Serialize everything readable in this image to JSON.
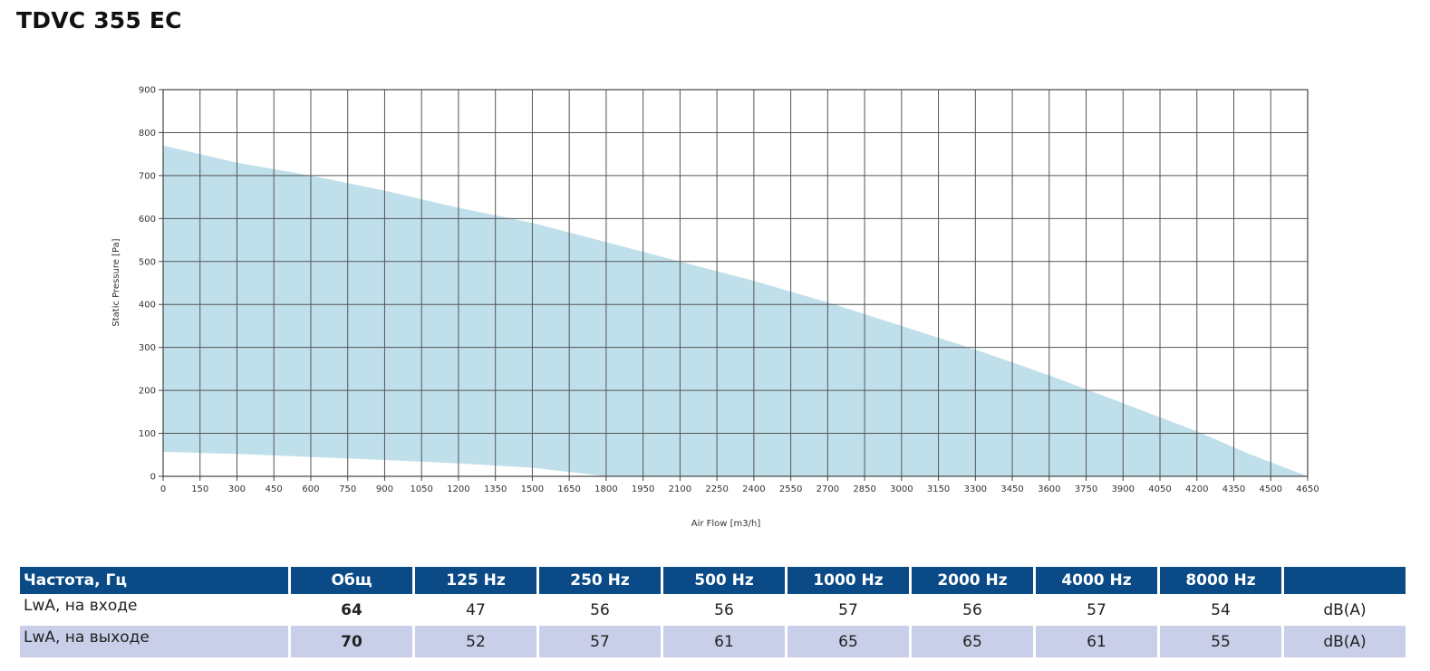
{
  "product": {
    "title": "TDVC 355 EC"
  },
  "chart_data": {
    "type": "area",
    "xlabel": "Air Flow [m3/h]",
    "ylabel": "Static Pressure [Pa]",
    "xlim": [
      0,
      4650
    ],
    "ylim": [
      0,
      900
    ],
    "x_ticks": [
      "0",
      "150",
      "300",
      "450",
      "600",
      "750",
      "900",
      "1050",
      "1200",
      "1350",
      "1500",
      "1650",
      "1800",
      "1950",
      "2100",
      "2250",
      "2400",
      "2550",
      "2700",
      "2850",
      "3000",
      "3150",
      "3300",
      "3450",
      "3600",
      "3750",
      "3900",
      "4050",
      "4200",
      "4350",
      "4500",
      "4650"
    ],
    "y_ticks": [
      "0",
      "100",
      "200",
      "300",
      "400",
      "500",
      "600",
      "700",
      "800",
      "900"
    ],
    "grid": true,
    "fill_color": "#bfe0ea",
    "upper_curve": {
      "x": [
        0,
        300,
        600,
        900,
        1200,
        1500,
        1800,
        2100,
        2400,
        2700,
        3000,
        3300,
        3600,
        3900,
        4200,
        4400,
        4650
      ],
      "y": [
        770,
        730,
        700,
        665,
        625,
        590,
        545,
        500,
        455,
        405,
        350,
        295,
        235,
        170,
        105,
        55,
        0
      ]
    },
    "lower_curve": {
      "x": [
        0,
        300,
        600,
        900,
        1200,
        1500,
        1800,
        4650
      ],
      "y": [
        57,
        52,
        45,
        38,
        30,
        20,
        0,
        0
      ]
    }
  },
  "table": {
    "headers": [
      "Частота, Гц",
      "Общ",
      "125 Hz",
      "250 Hz",
      "500 Hz",
      "1000 Hz",
      "2000 Hz",
      "4000 Hz",
      "8000 Hz",
      ""
    ],
    "rows": [
      {
        "label": "LwA, на входе",
        "total": "64",
        "values": [
          "47",
          "56",
          "56",
          "57",
          "56",
          "57",
          "54"
        ],
        "unit": "dB(A)"
      },
      {
        "label": "LwA, на выходе",
        "total": "70",
        "values": [
          "52",
          "57",
          "61",
          "65",
          "65",
          "61",
          "55"
        ],
        "unit": "dB(A)"
      }
    ]
  }
}
